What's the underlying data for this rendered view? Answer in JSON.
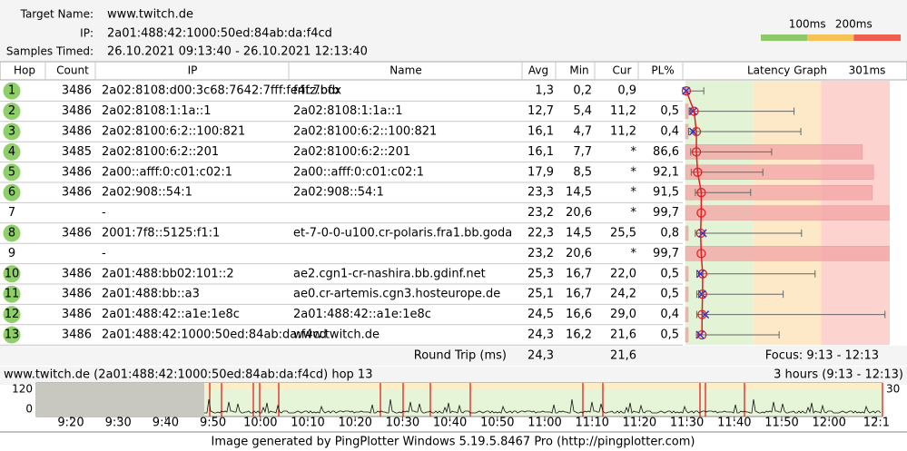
{
  "header": {
    "target_label": "Target Name:",
    "target": "www.twitch.de",
    "ip_label": "IP:",
    "ip": "2a01:488:42:1000:50ed:84ab:da:f4cd",
    "samples_label": "Samples Timed:",
    "samples": "26.10.2021 09:13:40 - 26.10.2021 12:13:40",
    "thresholds": [
      {
        "value": 100,
        "label": "100ms"
      },
      {
        "value": 200,
        "label": "200ms"
      }
    ]
  },
  "table": {
    "columns": [
      "Hop",
      "Count",
      "IP",
      "Name",
      "Avg",
      "Min",
      "Cur",
      "PL%",
      "Latency Graph"
    ],
    "graph_max": {
      "value": 301,
      "label": "301ms"
    },
    "rows": [
      {
        "hop": 1,
        "count": 3486,
        "ip": "2a02:8108:d00:3c68:7642:7fff:fe4f:7bfb",
        "name": "fritz.box",
        "avg": "1,3",
        "min": "0,2",
        "cur": "0,9",
        "pl": null,
        "max": 27
      },
      {
        "hop": 2,
        "count": 3486,
        "ip": "2a02:8108:1:1a::1",
        "name": "2a02:8108:1:1a::1",
        "avg": "12,7",
        "min": "5,4",
        "cur": "11,2",
        "pl": "0,5",
        "max": 160
      },
      {
        "hop": 3,
        "count": 3486,
        "ip": "2a02:8100:6:2::100:821",
        "name": "2a02:8100:6:2::100:821",
        "avg": "16,1",
        "min": "4,7",
        "cur": "11,2",
        "pl": "0,4",
        "max": 170
      },
      {
        "hop": 4,
        "count": 3485,
        "ip": "2a02:8100:6:2::201",
        "name": "2a02:8100:6:2::201",
        "avg": "16,1",
        "min": "7,7",
        "cur": "*",
        "pl": "86,6",
        "max": 127
      },
      {
        "hop": 5,
        "count": 3486,
        "ip": "2a00::afff:0:c01:c02:1",
        "name": "2a00::afff:0:c01:c02:1",
        "avg": "17,9",
        "min": "8,5",
        "cur": "*",
        "pl": "92,1",
        "max": 114
      },
      {
        "hop": 6,
        "count": 3486,
        "ip": "2a02:908::54:1",
        "name": "2a02:908::54:1",
        "avg": "23,3",
        "min": "14,5",
        "cur": "*",
        "pl": "91,5",
        "max": 96
      },
      {
        "hop": 7,
        "count": null,
        "ip": "-",
        "name": null,
        "avg": "23,2",
        "min": "20,6",
        "cur": "*",
        "pl": "99,7",
        "max": null
      },
      {
        "hop": 8,
        "count": 3486,
        "ip": "2001:7f8::5125:f1:1",
        "name": "et-7-0-0-u100.cr-polaris.fra1.bb.goda",
        "avg": "22,3",
        "min": "14,5",
        "cur": "25,5",
        "pl": "0,8",
        "max": 171
      },
      {
        "hop": 9,
        "count": null,
        "ip": "-",
        "name": null,
        "avg": "23,2",
        "min": "20,6",
        "cur": "*",
        "pl": "99,7",
        "max": null
      },
      {
        "hop": 10,
        "count": 3486,
        "ip": "2a01:488:bb02:101::2",
        "name": "ae2.cgn1-cr-nashira.bb.gdinf.net",
        "avg": "25,3",
        "min": "16,7",
        "cur": "22,0",
        "pl": "0,5",
        "max": 191
      },
      {
        "hop": 11,
        "count": 3486,
        "ip": "2a01:488:bb::a3",
        "name": "ae0.cr-artemis.cgn3.hosteurope.de",
        "avg": "25,1",
        "min": "16,7",
        "cur": "24,2",
        "pl": "0,5",
        "max": 144
      },
      {
        "hop": 12,
        "count": 3486,
        "ip": "2a01:488:42::a1e:1e8c",
        "name": "2a01:488:42::a1e:1e8c",
        "avg": "24,5",
        "min": "16,6",
        "cur": "29,0",
        "pl": "0,4",
        "max": 294
      },
      {
        "hop": 13,
        "count": 3486,
        "ip": "2a01:488:42:1000:50ed:84ab:da:f4cd",
        "name": "www.twitch.de",
        "avg": "24,3",
        "min": "16,2",
        "cur": "21,6",
        "pl": "0,5",
        "max": 138
      }
    ],
    "round_trip": {
      "label": "Round Trip (ms)",
      "avg": "24,3",
      "cur": "21,6",
      "focus": "Focus: 9:13 - 12:13"
    }
  },
  "timeline": {
    "title": "www.twitch.de (2a01:488:42:1000:50ed:84ab:da:f4cd) hop 13",
    "range": "3 hours (9:13 - 12:13)",
    "y_top": 120,
    "y_bottom": 0,
    "y_right": 30,
    "times": [
      "9:20",
      "9:30",
      "9:40",
      "9:50",
      "10:00",
      "10:10",
      "10:20",
      "10:30",
      "10:40",
      "10:50",
      "11:00",
      "11:10",
      "11:20",
      "11:30",
      "11:40",
      "11:50",
      "12:00",
      "12:1"
    ]
  },
  "footer": "Image generated by PingPlotter Windows 5.19.5.8467 Pro (http://pingplotter.com)"
}
